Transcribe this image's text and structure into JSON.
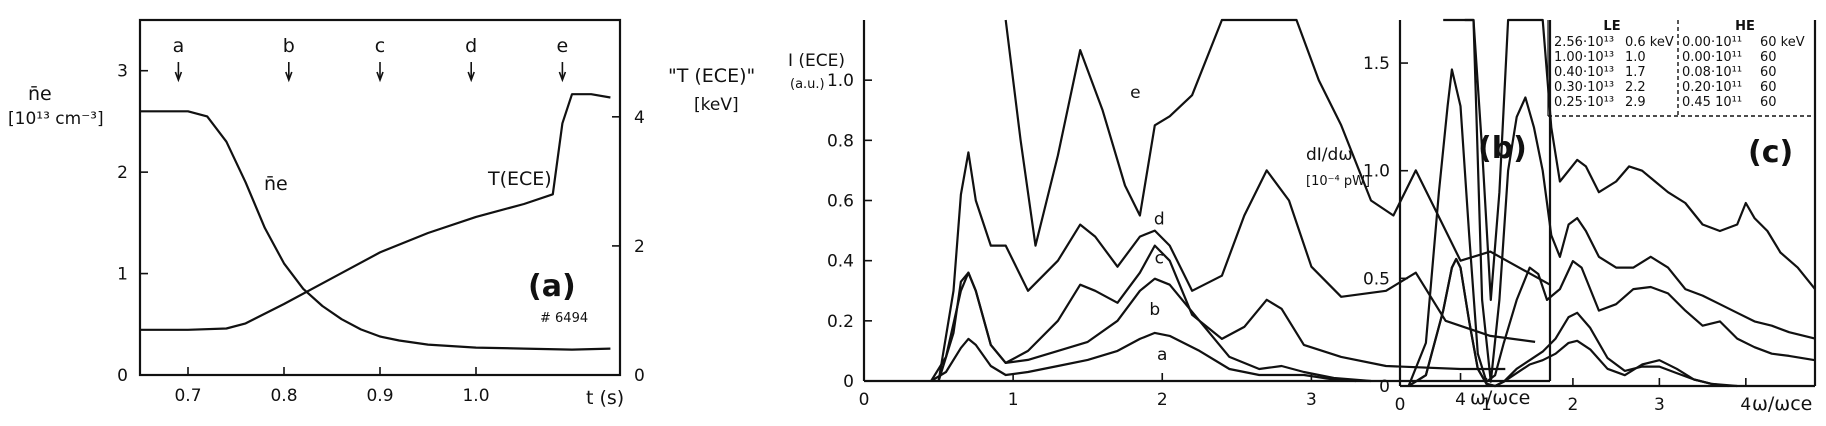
{
  "chart_data": [
    {
      "type": "line",
      "panel_label": "(a)",
      "shot_label": "# 6494",
      "xlabel": "t (s)",
      "xlim": [
        0.65,
        1.15
      ],
      "x_ticks": [
        "0.7",
        "0.8",
        "0.9",
        "1.0"
      ],
      "ylabel_left": "n̄e",
      "ylabel_left_unit": "[10¹³ cm⁻³]",
      "ylim_left": [
        0,
        3.5
      ],
      "y_ticks_left": [
        "0",
        "1",
        "2",
        "3"
      ],
      "ylabel_right": "\"T (ECE)\"",
      "ylabel_right_unit": "[keV]",
      "ylim_right": [
        0,
        5.5
      ],
      "y_ticks_right": [
        "0",
        "2",
        "4"
      ],
      "time_markers": [
        {
          "label": "a",
          "x": 0.69
        },
        {
          "label": "b",
          "x": 0.805
        },
        {
          "label": "c",
          "x": 0.9
        },
        {
          "label": "d",
          "x": 0.995
        },
        {
          "label": "e",
          "x": 1.09
        }
      ],
      "series": [
        {
          "name": "n̄e",
          "axis": "left",
          "x": [
            0.65,
            0.7,
            0.72,
            0.74,
            0.76,
            0.78,
            0.8,
            0.82,
            0.84,
            0.86,
            0.88,
            0.9,
            0.92,
            0.95,
            1.0,
            1.05,
            1.1,
            1.14
          ],
          "y": [
            2.6,
            2.6,
            2.55,
            2.3,
            1.9,
            1.45,
            1.1,
            0.85,
            0.68,
            0.55,
            0.45,
            0.38,
            0.34,
            0.3,
            0.27,
            0.26,
            0.25,
            0.26
          ]
        },
        {
          "name": "T(ECE)",
          "axis": "right",
          "x": [
            0.65,
            0.7,
            0.74,
            0.76,
            0.8,
            0.85,
            0.9,
            0.95,
            1.0,
            1.05,
            1.08,
            1.09,
            1.1,
            1.12,
            1.14
          ],
          "y": [
            0.7,
            0.7,
            0.72,
            0.8,
            1.1,
            1.5,
            1.9,
            2.2,
            2.45,
            2.65,
            2.8,
            3.9,
            4.35,
            4.35,
            4.3
          ]
        }
      ]
    },
    {
      "type": "line",
      "panel_label": "(b)",
      "ylabel": "I (ECE)",
      "ylabel_unit": "(a.u.)",
      "xlabel": "ω/ωce",
      "xlim": [
        0,
        4.6
      ],
      "x_ticks": [
        "0",
        "1",
        "2",
        "3",
        "4"
      ],
      "ylim": [
        0,
        1.2
      ],
      "y_ticks": [
        "0",
        "0.2",
        "0.4",
        "0.6",
        "0.8",
        "1.0"
      ],
      "series": [
        {
          "name": "a",
          "x": [
            0.45,
            0.55,
            0.65,
            0.7,
            0.75,
            0.85,
            0.95,
            1.1,
            1.3,
            1.5,
            1.7,
            1.85,
            1.95,
            2.05,
            2.25,
            2.45,
            2.65,
            2.8,
            2.95,
            3.15,
            3.3
          ],
          "y": [
            0,
            0.03,
            0.11,
            0.14,
            0.12,
            0.05,
            0.02,
            0.03,
            0.05,
            0.07,
            0.1,
            0.14,
            0.16,
            0.15,
            0.1,
            0.04,
            0.02,
            0.02,
            0.02,
            0.005,
            0
          ]
        },
        {
          "name": "b",
          "x": [
            0.45,
            0.55,
            0.65,
            0.7,
            0.75,
            0.85,
            0.95,
            1.1,
            1.3,
            1.5,
            1.7,
            1.85,
            1.95,
            2.05,
            2.25,
            2.45,
            2.65,
            2.8,
            2.95,
            3.15,
            3.4
          ],
          "y": [
            0,
            0.08,
            0.3,
            0.36,
            0.3,
            0.12,
            0.06,
            0.07,
            0.1,
            0.13,
            0.2,
            0.3,
            0.34,
            0.32,
            0.2,
            0.08,
            0.04,
            0.05,
            0.03,
            0.01,
            0
          ]
        },
        {
          "name": "c",
          "x": [
            0.5,
            0.6,
            0.65,
            0.7,
            0.75,
            0.85,
            0.95,
            1.1,
            1.3,
            1.45,
            1.55,
            1.7,
            1.85,
            1.95,
            2.05,
            2.2,
            2.4,
            2.55,
            2.7,
            2.8,
            2.95,
            3.2,
            3.5,
            4.0,
            4.3
          ],
          "y": [
            0,
            0.16,
            0.33,
            0.36,
            0.3,
            0.12,
            0.06,
            0.1,
            0.2,
            0.32,
            0.3,
            0.26,
            0.36,
            0.45,
            0.4,
            0.22,
            0.14,
            0.18,
            0.27,
            0.24,
            0.12,
            0.08,
            0.05,
            0.04,
            0.04
          ]
        },
        {
          "name": "d",
          "x": [
            0.5,
            0.6,
            0.65,
            0.7,
            0.75,
            0.85,
            0.95,
            1.1,
            1.3,
            1.45,
            1.55,
            1.7,
            1.85,
            1.95,
            2.05,
            2.2,
            2.4,
            2.55,
            2.7,
            2.85,
            3.0,
            3.2,
            3.5,
            3.7,
            3.9,
            4.2,
            4.5
          ],
          "y": [
            0,
            0.3,
            0.62,
            0.76,
            0.6,
            0.45,
            0.45,
            0.3,
            0.4,
            0.52,
            0.48,
            0.38,
            0.48,
            0.5,
            0.45,
            0.3,
            0.35,
            0.55,
            0.7,
            0.6,
            0.38,
            0.28,
            0.3,
            0.36,
            0.2,
            0.15,
            0.13
          ]
        },
        {
          "name": "e",
          "x": [
            0.95,
            1.05,
            1.15,
            1.3,
            1.45,
            1.6,
            1.75,
            1.85,
            1.95,
            2.05,
            2.2,
            2.4,
            2.6,
            2.75,
            2.9,
            3.05,
            3.2,
            3.4,
            3.55,
            3.7,
            3.85,
            4.0,
            4.2,
            4.6
          ],
          "y": [
            1.2,
            0.8,
            0.45,
            0.75,
            1.1,
            0.9,
            0.65,
            0.55,
            0.85,
            0.88,
            0.95,
            1.2,
            1.2,
            1.2,
            1.2,
            1.0,
            0.85,
            0.6,
            0.55,
            0.7,
            0.55,
            0.4,
            0.43,
            0.32
          ]
        }
      ]
    },
    {
      "type": "line",
      "panel_label": "(c)",
      "ylabel": "dI/dω",
      "ylabel_unit": "[10⁻⁴ pW]",
      "xlabel": "ω/ωce",
      "xlim": [
        0,
        4.8
      ],
      "x_ticks": [
        "0",
        "1",
        "2",
        "3",
        "4"
      ],
      "ylim": [
        0,
        1.7
      ],
      "y_ticks": [
        "0",
        "0.5",
        "1.0",
        "1.5"
      ],
      "table": {
        "headers": [
          "LE",
          "HE"
        ],
        "rows": [
          [
            "2.56·10¹³",
            "0.6 keV",
            "0.00·10¹¹",
            "60 keV"
          ],
          [
            "1.00·10¹³",
            "1.0",
            "0.00·10¹¹",
            "60"
          ],
          [
            "0.40·10¹³",
            "1.7",
            "0.08·10¹¹",
            "60"
          ],
          [
            "0.30·10¹³",
            "2.2",
            "0.20·10¹¹",
            "60"
          ],
          [
            "0.25·10¹³",
            "2.9",
            "0.45 10¹¹",
            "60"
          ]
        ]
      },
      "series": [
        {
          "x": [
            0.1,
            0.3,
            0.5,
            0.6,
            0.65,
            0.7,
            0.8,
            0.9,
            1.0,
            1.1,
            1.2,
            1.35,
            1.5,
            1.65,
            1.8,
            1.95,
            2.05,
            2.2,
            2.4,
            2.6,
            2.8,
            3.0,
            3.2,
            3.4,
            3.6,
            3.8
          ],
          "y": [
            0,
            0.05,
            0.35,
            0.55,
            0.59,
            0.55,
            0.3,
            0.08,
            0.01,
            0,
            0.02,
            0.06,
            0.1,
            0.12,
            0.15,
            0.2,
            0.21,
            0.17,
            0.08,
            0.05,
            0.1,
            0.12,
            0.08,
            0.03,
            0.01,
            0
          ]
        },
        {
          "x": [
            0.1,
            0.3,
            0.5,
            0.6,
            0.65,
            0.7,
            0.8,
            0.9,
            1.0,
            1.1,
            1.2,
            1.35,
            1.5,
            1.65,
            1.8,
            1.95,
            2.05,
            2.2,
            2.4,
            2.6,
            2.8,
            3.0,
            3.2,
            3.4,
            3.6,
            3.9
          ],
          "y": [
            0,
            0.05,
            0.35,
            0.55,
            0.59,
            0.55,
            0.3,
            0.08,
            0.01,
            0,
            0.02,
            0.08,
            0.12,
            0.16,
            0.22,
            0.32,
            0.34,
            0.27,
            0.13,
            0.07,
            0.09,
            0.09,
            0.06,
            0.03,
            0.01,
            0
          ]
        },
        {
          "x": [
            0.1,
            0.3,
            0.45,
            0.55,
            0.6,
            0.7,
            0.8,
            0.9,
            1.0,
            1.1,
            1.2,
            1.35,
            1.5,
            1.6,
            1.7,
            1.85,
            2.0,
            2.1,
            2.3,
            2.5,
            2.7,
            2.9,
            3.1,
            3.3,
            3.5,
            3.7,
            3.9,
            4.1,
            4.3,
            4.5,
            4.8
          ],
          "y": [
            0,
            0.2,
            0.9,
            1.3,
            1.47,
            1.3,
            0.7,
            0.15,
            0.02,
            0.05,
            0.2,
            0.4,
            0.55,
            0.52,
            0.4,
            0.45,
            0.58,
            0.55,
            0.35,
            0.38,
            0.45,
            0.46,
            0.43,
            0.35,
            0.28,
            0.3,
            0.22,
            0.18,
            0.15,
            0.14,
            0.12
          ]
        },
        {
          "x": [
            0.5,
            0.55,
            0.65,
            0.75,
            0.85,
            0.95,
            1.05,
            1.15,
            1.25,
            1.35,
            1.45,
            1.55,
            1.65,
            1.75,
            1.85,
            1.95,
            2.05,
            2.15,
            2.3,
            2.5,
            2.7,
            2.9,
            3.1,
            3.3,
            3.5,
            3.7,
            3.9,
            4.1,
            4.3,
            4.5,
            4.8
          ],
          "y": [
            1.7,
            1.7,
            1.7,
            1.7,
            1.7,
            0.4,
            0.02,
            0.4,
            1.0,
            1.25,
            1.34,
            1.2,
            1.0,
            0.7,
            0.6,
            0.75,
            0.78,
            0.72,
            0.6,
            0.55,
            0.55,
            0.6,
            0.55,
            0.45,
            0.42,
            0.38,
            0.34,
            0.3,
            0.28,
            0.25,
            0.22
          ]
        },
        {
          "x": [
            0.75,
            0.85,
            0.95,
            1.05,
            1.15,
            1.25,
            1.35,
            1.45,
            1.55,
            1.65,
            1.75,
            1.85,
            1.95,
            2.05,
            2.15,
            2.3,
            2.5,
            2.65,
            2.8,
            2.95,
            3.1,
            3.3,
            3.5,
            3.7,
            3.9,
            4.0,
            4.1,
            4.25,
            4.4,
            4.6,
            4.8
          ],
          "y": [
            1.7,
            1.7,
            1.1,
            0.4,
            0.9,
            1.7,
            1.7,
            1.7,
            1.7,
            1.7,
            1.2,
            0.95,
            1.0,
            1.05,
            1.02,
            0.9,
            0.95,
            1.02,
            1.0,
            0.95,
            0.9,
            0.85,
            0.75,
            0.72,
            0.75,
            0.85,
            0.78,
            0.72,
            0.62,
            0.55,
            0.45
          ]
        }
      ]
    }
  ]
}
